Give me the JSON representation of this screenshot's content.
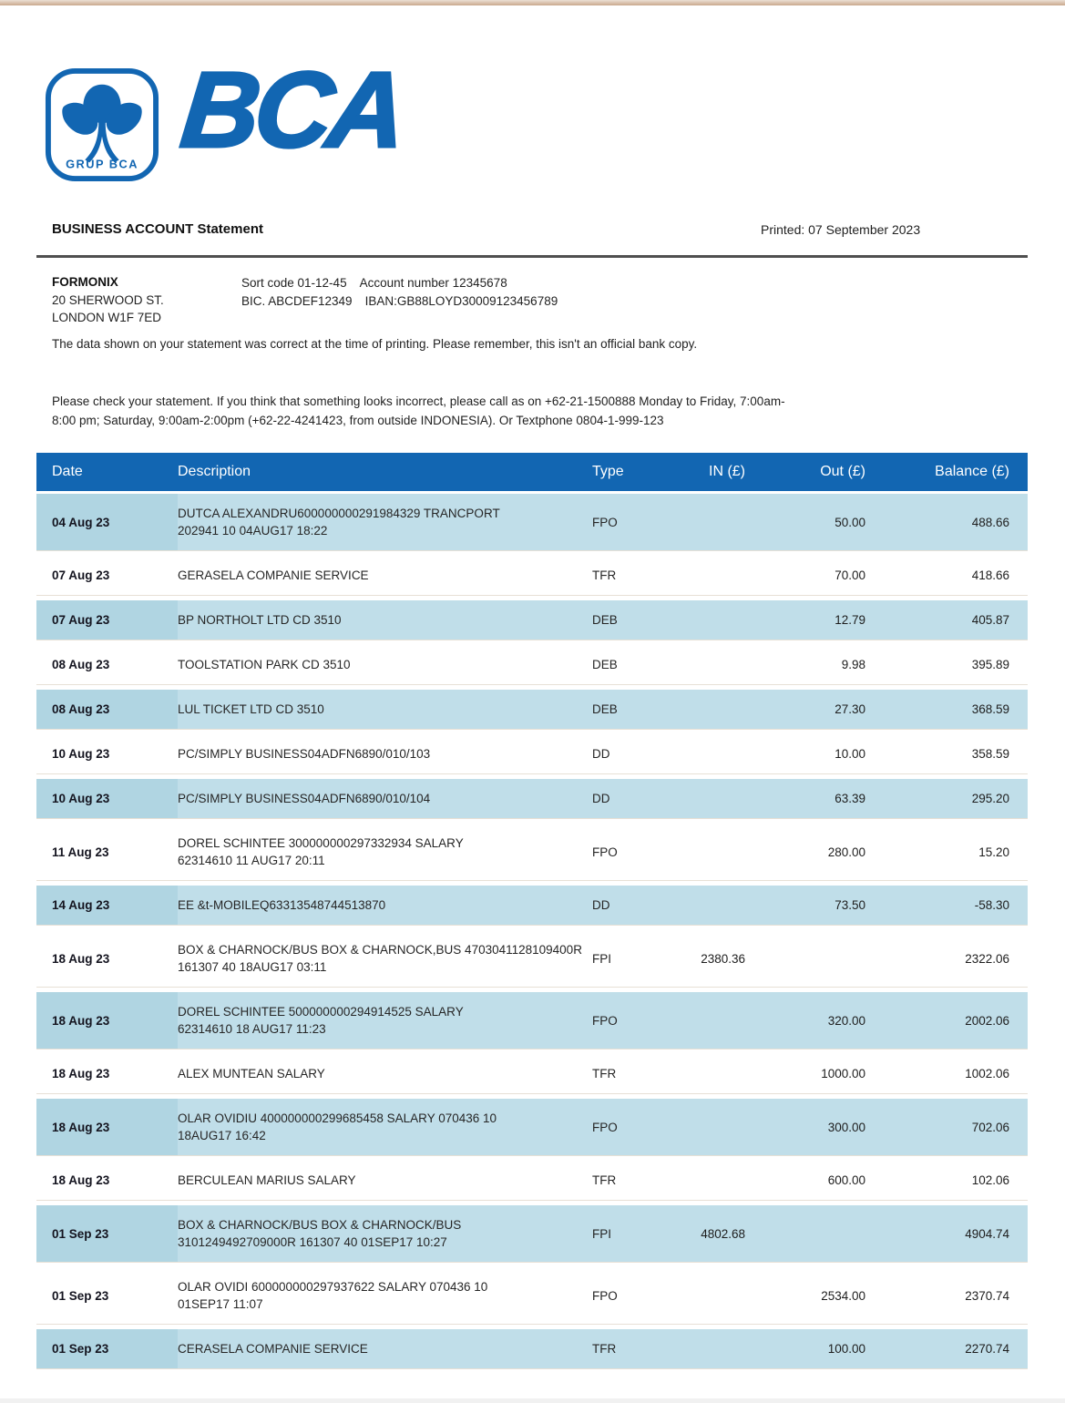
{
  "colors": {
    "brand_blue": "#1266b2",
    "row_shade_blue": "#c0dee9",
    "date_cell_shade": "#b0d5e2",
    "top_border_tan": "#c9a88c",
    "header_text": "#ffffff"
  },
  "brand": {
    "logo_wordmark": "BCA",
    "logo_badge_caption": "GRUP BCA"
  },
  "header": {
    "title": "BUSINESS ACCOUNT Statement",
    "printed": "Printed: 07 September 2023"
  },
  "account": {
    "name": "FORMONIX",
    "address_line1": "20 SHERWOOD ST.",
    "address_line2": "LONDON W1F 7ED",
    "sort_code": "Sort code 01-12-45",
    "account_number": "Account number 12345678",
    "bic": "BIC. ABCDEF12349",
    "iban": "IBAN:GB88LOYD30009123456789"
  },
  "notices": {
    "disclaimer": "The data shown on your statement was correct at the time of printing. Please remember, this isn't an official bank copy.",
    "check_line1": "Please check your statement. If you think that something looks incorrect, please call as on +62-21-1500888 Monday to Friday, 7:00am-",
    "check_line2": "8:00 pm; Saturday, 9:00am-2:00pm (+62-22-4241423, from outside INDONESIA). Or Textphone 0804-1-999-123"
  },
  "table": {
    "columns": {
      "date": "Date",
      "description": "Description",
      "type": "Type",
      "in": "IN (£)",
      "out": "Out (£)",
      "balance": "Balance (£)"
    },
    "rows": [
      {
        "date": "04 Aug 23",
        "desc": [
          "DUTCA ALEXANDRU600000000291984329 TRANCPORT",
          "202941 10 04AUG17 18:22"
        ],
        "type": "FPO",
        "in": "",
        "out": "50.00",
        "balance": "488.66"
      },
      {
        "date": "07 Aug 23",
        "desc": [
          "GERASELA COMPANIE SERVICE"
        ],
        "type": "TFR",
        "in": "",
        "out": "70.00",
        "balance": "418.66"
      },
      {
        "date": "07 Aug 23",
        "desc": [
          "BP NORTHOLT LTD CD 3510"
        ],
        "type": "DEB",
        "in": "",
        "out": "12.79",
        "balance": "405.87"
      },
      {
        "date": "08 Aug 23",
        "desc": [
          "TOOLSTATION PARK CD 3510"
        ],
        "type": "DEB",
        "in": "",
        "out": "9.98",
        "balance": "395.89"
      },
      {
        "date": "08 Aug 23",
        "desc": [
          "LUL TICKET LTD CD 3510"
        ],
        "type": "DEB",
        "in": "",
        "out": "27.30",
        "balance": "368.59"
      },
      {
        "date": "10 Aug 23",
        "desc": [
          "PC/SIMPLY BUSINESS04ADFN6890/010/103"
        ],
        "type": "DD",
        "in": "",
        "out": "10.00",
        "balance": "358.59"
      },
      {
        "date": "10 Aug 23",
        "desc": [
          "PC/SIMPLY BUSINESS04ADFN6890/010/104"
        ],
        "type": "DD",
        "in": "",
        "out": "63.39",
        "balance": "295.20"
      },
      {
        "date": "11 Aug 23",
        "desc": [
          "DOREL SCHINTEE 300000000297332934 SALARY",
          "62314610 11 AUG17 20:11"
        ],
        "type": "FPO",
        "in": "",
        "out": "280.00",
        "balance": "15.20"
      },
      {
        "date": "14 Aug 23",
        "desc": [
          "EE &t-MOBILEQ63313548744513870"
        ],
        "type": "DD",
        "in": "",
        "out": "73.50",
        "balance": "-58.30"
      },
      {
        "date": "18 Aug 23",
        "desc": [
          "BOX & CHARNOCK/BUS BOX & CHARNOCK,BUS 4703041128109400R",
          "161307 40 18AUG17 03:11"
        ],
        "type": "FPI",
        "in": "2380.36",
        "out": "",
        "balance": "2322.06"
      },
      {
        "date": "18 Aug 23",
        "desc": [
          "DOREL SCHINTEE 500000000294914525 SALARY",
          "62314610 18 AUG17 11:23"
        ],
        "type": "FPO",
        "in": "",
        "out": "320.00",
        "balance": "2002.06"
      },
      {
        "date": "18 Aug 23",
        "desc": [
          "ALEX MUNTEAN SALARY"
        ],
        "type": "TFR",
        "in": "",
        "out": "1000.00",
        "balance": "1002.06"
      },
      {
        "date": "18 Aug 23",
        "desc": [
          "OLAR OVIDIU 400000000299685458 SALARY 070436 10",
          "18AUG17 16:42"
        ],
        "type": "FPO",
        "in": "",
        "out": "300.00",
        "balance": "702.06"
      },
      {
        "date": "18 Aug 23",
        "desc": [
          "BERCULEAN MARIUS SALARY"
        ],
        "type": "TFR",
        "in": "",
        "out": "600.00",
        "balance": "102.06"
      },
      {
        "date": "01 Sep 23",
        "desc": [
          "BOX & CHARNOCK/BUS BOX & CHARNOCK/BUS",
          "3101249492709000R 161307 40 01SEP17 10:27"
        ],
        "type": "FPI",
        "in": "4802.68",
        "out": "",
        "balance": "4904.74"
      },
      {
        "date": "01 Sep 23",
        "desc": [
          "OLAR OVIDI 600000000297937622 SALARY 070436 10",
          "01SEP17 11:07"
        ],
        "type": "FPO",
        "in": "",
        "out": "2534.00",
        "balance": "2370.74"
      },
      {
        "date": "01 Sep 23",
        "desc": [
          "CERASELA COMPANIE SERVICE"
        ],
        "type": "TFR",
        "in": "",
        "out": "100.00",
        "balance": "2270.74"
      }
    ]
  }
}
